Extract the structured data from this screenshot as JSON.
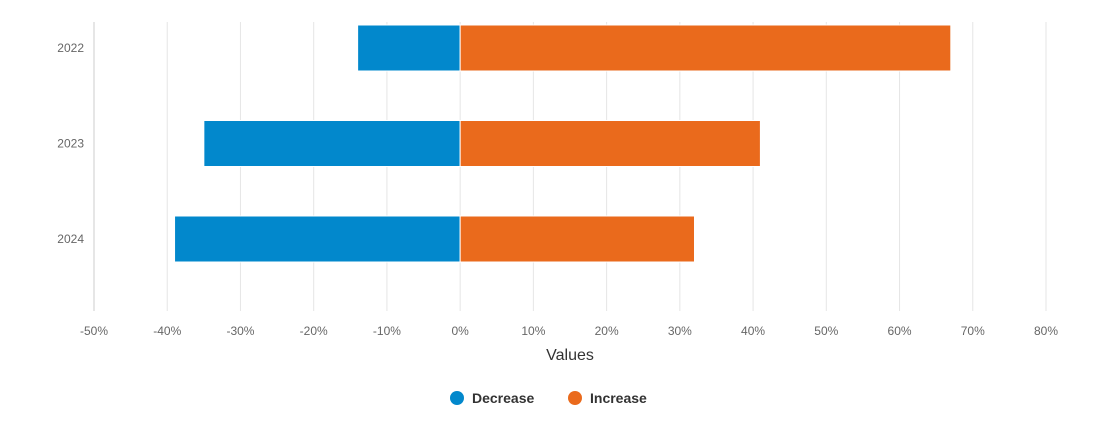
{
  "chart_data": {
    "type": "bar",
    "orientation": "horizontal",
    "stacking": "diverging",
    "categories": [
      "2022",
      "2023",
      "2024"
    ],
    "series": [
      {
        "name": "Decrease",
        "color": "#0288cc",
        "values": [
          -14,
          -35,
          -39
        ]
      },
      {
        "name": "Increase",
        "color": "#ea6a1c",
        "values": [
          67,
          41,
          32
        ]
      }
    ],
    "xlabel": "Values",
    "ylabel": "",
    "xlim": [
      -50,
      80
    ],
    "x_ticks": [
      -50,
      -40,
      -30,
      -20,
      -10,
      0,
      10,
      20,
      30,
      40,
      50,
      60,
      70,
      80
    ],
    "x_tick_labels": [
      "-50%",
      "-40%",
      "-30%",
      "-20%",
      "-10%",
      "0%",
      "10%",
      "20%",
      "30%",
      "40%",
      "50%",
      "60%",
      "70%",
      "80%"
    ],
    "value_unit": "%",
    "grid": {
      "vertical": true,
      "horizontal": false
    },
    "legend": {
      "position": "bottom-center"
    }
  }
}
